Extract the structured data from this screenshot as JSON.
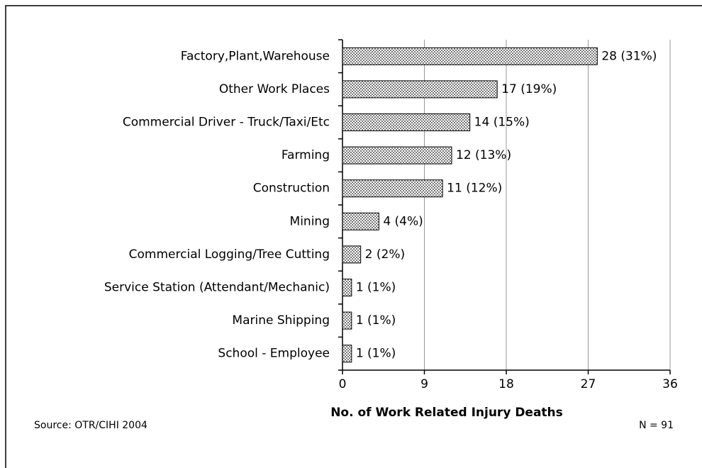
{
  "chart_data": {
    "type": "barh",
    "categories": [
      "Factory,Plant,Warehouse",
      "Other Work Places",
      "Commercial Driver - Truck/Taxi/Etc",
      "Farming",
      "Construction",
      "Mining",
      "Commercial Logging/Tree Cutting",
      "Service Station (Attendant/Mechanic)",
      "Marine Shipping",
      "School - Employee"
    ],
    "values": [
      28,
      17,
      14,
      12,
      11,
      4,
      2,
      1,
      1,
      1
    ],
    "value_labels": [
      "28 (31%)",
      "17 (19%)",
      "14 (15%)",
      "12 (13%)",
      "11 (12%)",
      "4 (4%)",
      "2 (2%)",
      "1 (1%)",
      "1 (1%)",
      "1 (1%)"
    ],
    "color": "#7a7a7a",
    "xlim": [
      0,
      36
    ],
    "xticks": [
      0,
      9,
      18,
      27,
      36
    ],
    "grid": true,
    "xlabel": "No. of Work Related Injury Deaths",
    "source": "Source: OTR/CIHI 2004",
    "note": "N = 91"
  }
}
